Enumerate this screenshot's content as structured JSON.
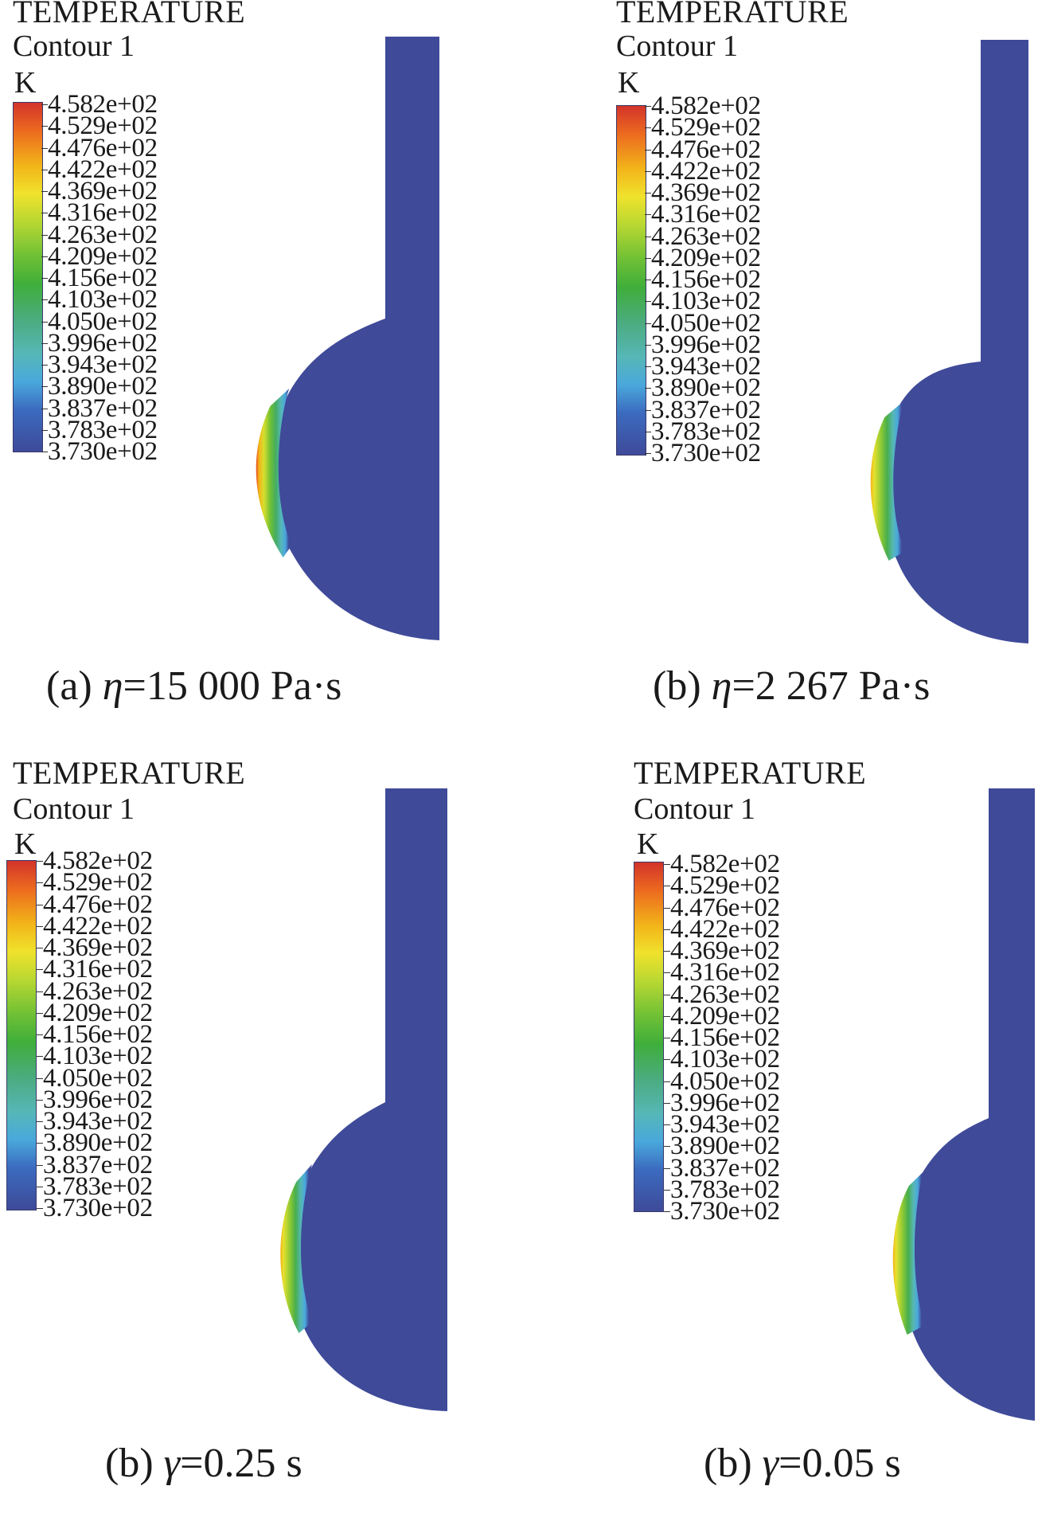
{
  "legend": {
    "title": "TEMPERATURE",
    "subtitle": "Contour 1",
    "unit": "K",
    "values": [
      "4.582e+02",
      "4.529e+02",
      "4.476e+02",
      "4.422e+02",
      "4.369e+02",
      "4.316e+02",
      "4.263e+02",
      "4.209e+02",
      "4.156e+02",
      "4.103e+02",
      "4.050e+02",
      "3.996e+02",
      "3.943e+02",
      "3.890e+02",
      "3.837e+02",
      "3.783e+02",
      "3.730e+02"
    ]
  },
  "colors": {
    "background_field": "#3f4a99",
    "colormap": [
      "#d2332a",
      "#ec6a1f",
      "#f2b419",
      "#f0e22c",
      "#b9d832",
      "#6fc035",
      "#3fae3a",
      "#4bab7e",
      "#56b7b7",
      "#4aa8dc",
      "#3b6bbf",
      "#3f4a99"
    ]
  },
  "panels": [
    {
      "caption_prefix": "(a) ",
      "caption_symbol": "η",
      "caption_suffix": "=15 000 Pa·s"
    },
    {
      "caption_prefix": "(b) ",
      "caption_symbol": "η",
      "caption_suffix": "=2 267 Pa·s"
    },
    {
      "caption_prefix": "(b) ",
      "caption_symbol": "γ",
      "caption_suffix": "=0.25 s"
    },
    {
      "caption_prefix": "(b) ",
      "caption_symbol": "γ",
      "caption_suffix": "=0.05 s"
    }
  ]
}
